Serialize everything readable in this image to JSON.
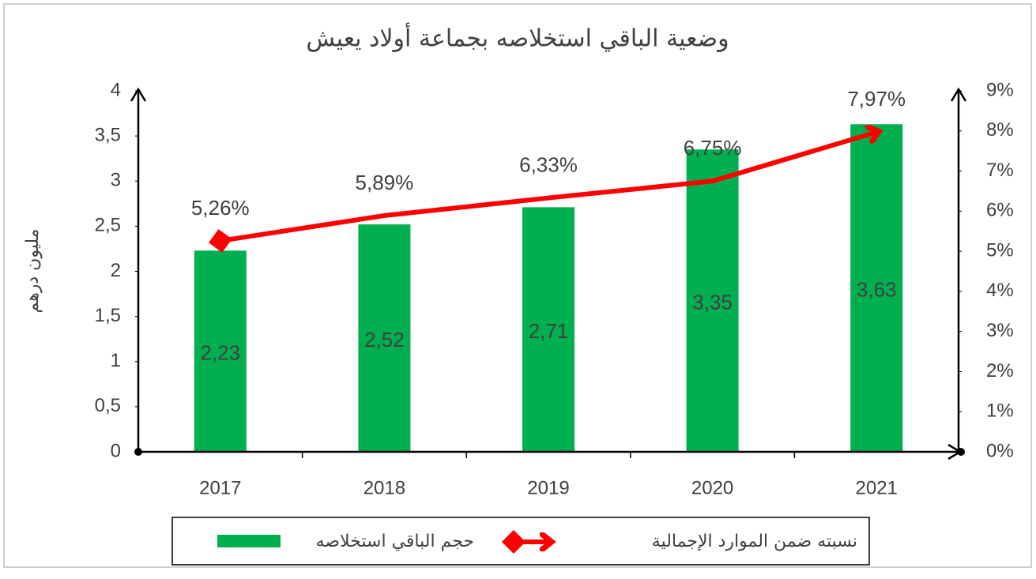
{
  "chart_data": {
    "type": "bar",
    "title": "وضعية الباقي استخلاصه بجماعة أولاد يعيش",
    "ylabel": "مليون درهم",
    "categories": [
      "2017",
      "2018",
      "2019",
      "2020",
      "2021"
    ],
    "series": [
      {
        "name": "حجم الباقي استخلاصه",
        "type": "bar",
        "color": "#00b050",
        "values": [
          2.23,
          2.52,
          2.71,
          3.35,
          3.63
        ],
        "value_labels": [
          "2,23",
          "2,52",
          "2,71",
          "3,35",
          "3,63"
        ]
      },
      {
        "name": "نسبته ضمن الموارد الإجمالية",
        "type": "line",
        "axis": "y2",
        "color": "#ff0000",
        "values": [
          5.26,
          5.89,
          6.33,
          6.75,
          7.97
        ],
        "value_labels": [
          "5,26%",
          "5,89%",
          "6,33%",
          "6,75%",
          "7,97%"
        ]
      }
    ],
    "ylim": [
      0,
      4
    ],
    "yticks": [
      0,
      {
        "value": 0.5,
        "label": "0,5"
      },
      1,
      {
        "value": 1.5,
        "label": "1,5"
      },
      2,
      {
        "value": 2.5,
        "label": "2,5"
      },
      3,
      {
        "value": 3.5,
        "label": "3,5"
      },
      4
    ],
    "y2lim": [
      0,
      9
    ],
    "y2ticks": [
      {
        "value": 0,
        "label": "0%"
      },
      {
        "value": 1,
        "label": "1%"
      },
      {
        "value": 2,
        "label": "2%"
      },
      {
        "value": 3,
        "label": "3%"
      },
      {
        "value": 4,
        "label": "4%"
      },
      {
        "value": 5,
        "label": "5%"
      },
      {
        "value": 6,
        "label": "6%"
      },
      {
        "value": 7,
        "label": "7%"
      },
      {
        "value": 8,
        "label": "8%"
      },
      {
        "value": 9,
        "label": "9%"
      }
    ],
    "grid": false,
    "legend": "bottom"
  }
}
